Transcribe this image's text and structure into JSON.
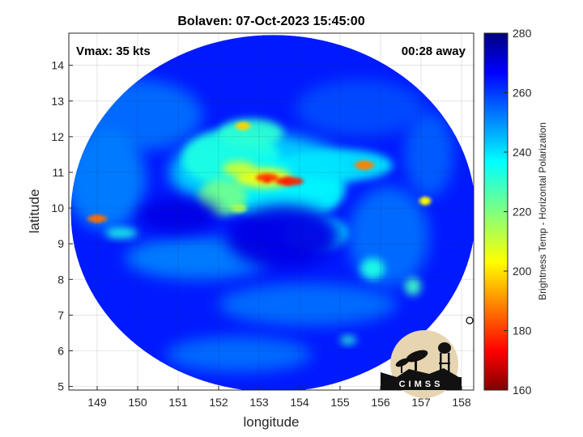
{
  "chart_data": {
    "type": "heatmap",
    "title": "Bolaven: 07-Oct-2023 15:45:00",
    "xlabel": "longitude",
    "ylabel": "latitude",
    "xlim": [
      148.3,
      158.3
    ],
    "ylim": [
      4.9,
      14.9
    ],
    "xticks": [
      149,
      150,
      151,
      152,
      153,
      154,
      155,
      156,
      157,
      158
    ],
    "yticks": [
      5,
      6,
      7,
      8,
      9,
      10,
      11,
      12,
      13,
      14
    ],
    "grid": true,
    "annotations": {
      "vmax": "Vmax: 35 kts",
      "time_away": "00:28 away"
    },
    "colorbar": {
      "label": "Brightness Temp - Horizontal Polarization",
      "range": [
        160,
        280
      ],
      "ticks": [
        160,
        180,
        200,
        220,
        240,
        260,
        280
      ],
      "colormap": "jet"
    },
    "swath": {
      "center": [
        153.35,
        9.85
      ],
      "radius_deg": 5.0
    },
    "features": [
      {
        "name": "core",
        "lon": 153.2,
        "lat": 10.8,
        "value": 180
      },
      {
        "name": "core-east",
        "lon": 153.7,
        "lat": 10.75,
        "value": 178
      },
      {
        "name": "north-band",
        "lon": 152.6,
        "lat": 12.3,
        "value": 200
      },
      {
        "name": "east-cell",
        "lon": 155.6,
        "lat": 11.2,
        "value": 190
      },
      {
        "name": "west-cell",
        "lon": 149.0,
        "lat": 9.7,
        "value": 188
      },
      {
        "name": "east-edge",
        "lon": 157.1,
        "lat": 10.2,
        "value": 205
      }
    ]
  },
  "logo": {
    "text": "CIMSS"
  }
}
